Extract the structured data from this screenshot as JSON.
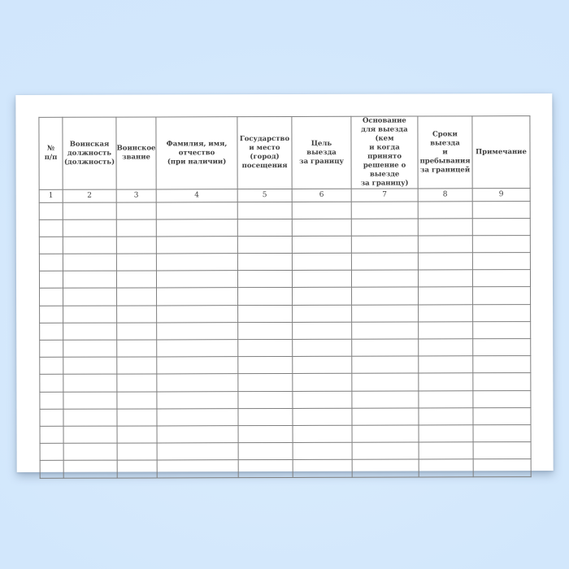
{
  "page": {
    "background_base_color": "#d2e7fc",
    "background_light_color": "#dcedfd",
    "background_edge_color": "#cfe5fb",
    "paper_color": "#ffffff",
    "grid_line_color": "#7e7e7e",
    "text_color": "#3e3e3e"
  },
  "table": {
    "headers": [
      {
        "label": "№\nп/п"
      },
      {
        "label": "Воинская\nдолжность\n(должность)"
      },
      {
        "label": "Воинское\nзвание"
      },
      {
        "label": "Фамилия, имя,\nотчество\n(при наличии)"
      },
      {
        "label": "Государство\nи место\n(город)\nпосещения"
      },
      {
        "label": "Цель\nвыезда\nза границу"
      },
      {
        "label": "Основание\nдля выезда (кем\nи когда принято\nрешение о выезде\nза границу)"
      },
      {
        "label": "Сроки выезда\nи пребывания\nза границей"
      },
      {
        "label": "Примечание"
      }
    ],
    "column_numbers": [
      "1",
      "2",
      "3",
      "4",
      "5",
      "6",
      "7",
      "8",
      "9"
    ],
    "empty_rows": 16
  }
}
